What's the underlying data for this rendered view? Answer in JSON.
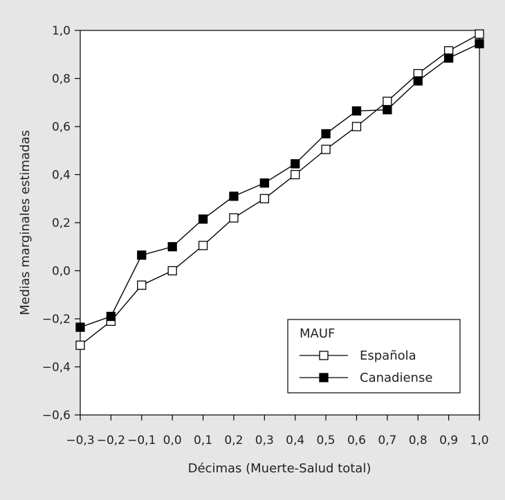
{
  "chart_data": {
    "type": "line",
    "xlabel": "Décimas (Muerte-Salud total)",
    "ylabel": "Medias marginales estimadas",
    "x": [
      -0.3,
      -0.2,
      -0.1,
      0.0,
      0.1,
      0.2,
      0.3,
      0.4,
      0.5,
      0.6,
      0.7,
      0.8,
      0.9,
      1.0
    ],
    "x_tick_labels": [
      "−0,3",
      "−0,2",
      "−0,1",
      "0,0",
      "0,1",
      "0,2",
      "0,3",
      "0,4",
      "0,5",
      "0,6",
      "0,7",
      "0,8",
      "0,9",
      "1,0"
    ],
    "y_ticks": [
      -0.6,
      -0.4,
      -0.2,
      0.0,
      0.2,
      0.4,
      0.6,
      0.8,
      1.0
    ],
    "y_tick_labels": [
      "−0,6",
      "−0,4",
      "−0,2",
      "0,0",
      "0,2",
      "0,4",
      "0,6",
      "0,8",
      "1,0"
    ],
    "xlim": [
      -0.3,
      1.0
    ],
    "ylim": [
      -0.6,
      1.0
    ],
    "grid": false,
    "legend": {
      "title": "MAUF",
      "position": "bottom-right"
    },
    "series": [
      {
        "name": "Española",
        "marker": "hollow-square",
        "color": "#000000",
        "values": [
          -0.31,
          -0.21,
          -0.06,
          0.0,
          0.105,
          0.22,
          0.3,
          0.4,
          0.505,
          0.6,
          0.705,
          0.82,
          0.915,
          0.985
        ]
      },
      {
        "name": "Canadiense",
        "marker": "filled-square",
        "color": "#000000",
        "values": [
          -0.235,
          -0.19,
          0.065,
          0.1,
          0.215,
          0.31,
          0.365,
          0.445,
          0.57,
          0.665,
          0.67,
          0.79,
          0.885,
          0.945
        ]
      }
    ]
  }
}
